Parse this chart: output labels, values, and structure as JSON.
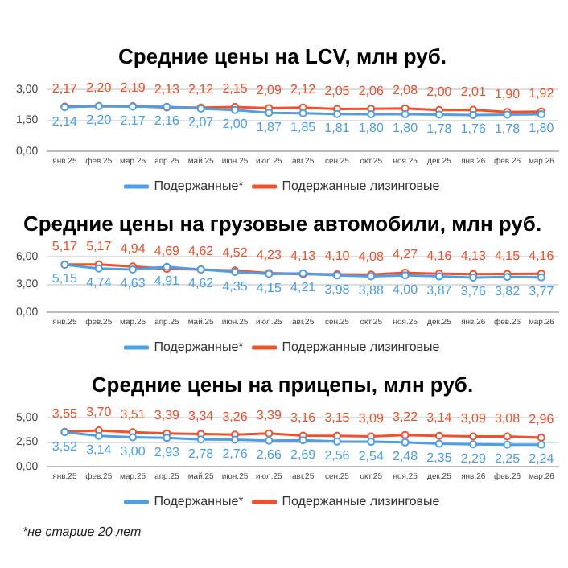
{
  "chart_data": [
    {
      "type": "line",
      "title": "Средние цены на LCV, млн руб.",
      "categories": [
        "янв.25",
        "фев.25",
        "мар.25",
        "апр.25",
        "май.25",
        "июн.25",
        "июл.25",
        "авг.25",
        "сен.25",
        "окт.25",
        "ноя.25",
        "дек.25",
        "янв.26",
        "фев.26",
        "мар.26"
      ],
      "series": [
        {
          "name": "Подержанные*",
          "color": "#4a9fe8",
          "values": [
            2.14,
            2.2,
            2.17,
            2.16,
            2.07,
            2.0,
            1.87,
            1.85,
            1.81,
            1.8,
            1.8,
            1.78,
            1.76,
            1.78,
            1.8
          ],
          "value_labels": [
            "2,14",
            "2,20",
            "2,17",
            "2,16",
            "2,07",
            "2,00",
            "1,87",
            "1,85",
            "1,81",
            "1,80",
            "1,80",
            "1,78",
            "1,76",
            "1,78",
            "1,80"
          ]
        },
        {
          "name": "Подержанные лизинговые",
          "color": "#f0502a",
          "values": [
            2.17,
            2.2,
            2.19,
            2.13,
            2.12,
            2.15,
            2.09,
            2.12,
            2.05,
            2.06,
            2.08,
            2.0,
            2.01,
            1.9,
            1.92
          ],
          "value_labels": [
            "2,17",
            "2,20",
            "2,19",
            "2,13",
            "2,12",
            "2,15",
            "2,09",
            "2,12",
            "2,05",
            "2,06",
            "2,08",
            "2,00",
            "2,01",
            "1,90",
            "1,92"
          ]
        }
      ],
      "ylim": [
        0,
        3
      ],
      "yticks": [
        {
          "value": 0,
          "label": "0,00"
        },
        {
          "value": 1.5,
          "label": "1,50"
        },
        {
          "value": 3,
          "label": "3,00"
        }
      ],
      "grid": "y",
      "legend": "bottom",
      "marker": "circle"
    },
    {
      "type": "line",
      "title": "Средние цены на грузовые автомобили, млн руб.",
      "categories": [
        "янв.25",
        "фев.25",
        "мар.25",
        "апр.25",
        "май.25",
        "июн.25",
        "июл.25",
        "авг.25",
        "сен.25",
        "окт.25",
        "ноя.25",
        "дек.25",
        "янв.26",
        "фев.26",
        "мар.26"
      ],
      "series": [
        {
          "name": "Подержанные*",
          "color": "#4a9fe8",
          "values": [
            5.15,
            4.74,
            4.63,
            4.91,
            4.62,
            4.35,
            4.15,
            4.21,
            3.98,
            3.88,
            4.0,
            3.87,
            3.76,
            3.82,
            3.77
          ],
          "value_labels": [
            "5,15",
            "4,74",
            "4,63",
            "4,91",
            "4,62",
            "4,35",
            "4,15",
            "4,21",
            "3,98",
            "3,88",
            "4,00",
            "3,87",
            "3,76",
            "3,82",
            "3,77"
          ]
        },
        {
          "name": "Подержанные лизинговые",
          "color": "#f0502a",
          "values": [
            5.17,
            5.17,
            4.94,
            4.69,
            4.62,
            4.52,
            4.23,
            4.13,
            4.1,
            4.08,
            4.27,
            4.16,
            4.13,
            4.15,
            4.16
          ],
          "value_labels": [
            "5,17",
            "5,17",
            "4,94",
            "4,69",
            "4,62",
            "4,52",
            "4,23",
            "4,13",
            "4,10",
            "4,08",
            "4,27",
            "4,16",
            "4,13",
            "4,15",
            "4,16"
          ]
        }
      ],
      "ylim": [
        0,
        6
      ],
      "yticks": [
        {
          "value": 0,
          "label": "0,00"
        },
        {
          "value": 3,
          "label": "3,00"
        },
        {
          "value": 6,
          "label": "6,00"
        }
      ],
      "grid": "y",
      "legend": "bottom",
      "marker": "circle"
    },
    {
      "type": "line",
      "title": "Средние цены на прицепы, млн руб.",
      "categories": [
        "янв.25",
        "фев.25",
        "мар.25",
        "апр.25",
        "май.25",
        "июн.25",
        "июл.25",
        "авг.25",
        "сен.25",
        "окт.25",
        "ноя.25",
        "дек.25",
        "янв.26",
        "фев.26",
        "мар.26"
      ],
      "series": [
        {
          "name": "Подержанные*",
          "color": "#4a9fe8",
          "values": [
            3.52,
            3.14,
            3.0,
            2.93,
            2.78,
            2.76,
            2.66,
            2.69,
            2.56,
            2.54,
            2.48,
            2.35,
            2.29,
            2.25,
            2.24
          ],
          "value_labels": [
            "3,52",
            "3,14",
            "3,00",
            "2,93",
            "2,78",
            "2,76",
            "2,66",
            "2,69",
            "2,56",
            "2,54",
            "2,48",
            "2,35",
            "2,29",
            "2,25",
            "2,24"
          ]
        },
        {
          "name": "Подержанные лизинговые",
          "color": "#f0502a",
          "values": [
            3.55,
            3.7,
            3.51,
            3.39,
            3.34,
            3.26,
            3.39,
            3.16,
            3.15,
            3.09,
            3.22,
            3.14,
            3.09,
            3.08,
            2.96
          ],
          "value_labels": [
            "3,55",
            "3,70",
            "3,51",
            "3,39",
            "3,34",
            "3,26",
            "3,39",
            "3,16",
            "3,15",
            "3,09",
            "3,22",
            "3,14",
            "3,09",
            "3,08",
            "2,96"
          ]
        }
      ],
      "ylim": [
        0,
        5
      ],
      "yticks": [
        {
          "value": 0,
          "label": "0,00"
        },
        {
          "value": 2.5,
          "label": "2,50"
        },
        {
          "value": 5,
          "label": "5,00"
        }
      ],
      "grid": "y",
      "legend": "bottom",
      "marker": "circle",
      "annotations": [
        "*не старше 20 лет"
      ]
    }
  ]
}
